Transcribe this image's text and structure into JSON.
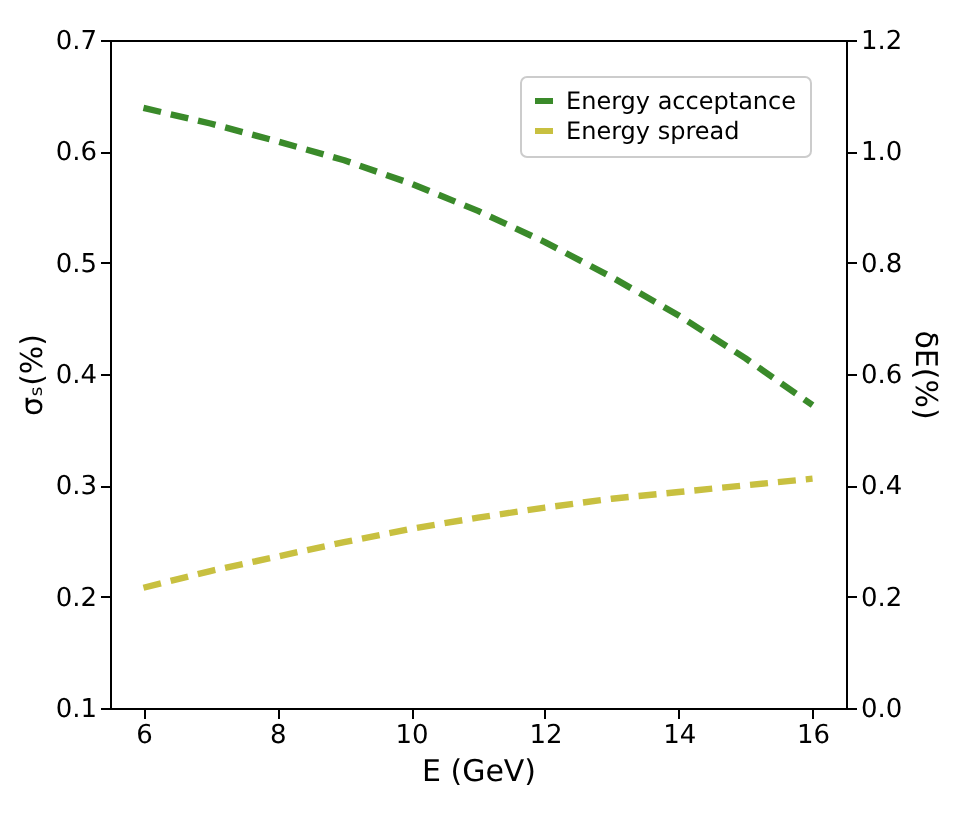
{
  "chart_data": {
    "type": "line",
    "xlabel": "E (GeV)",
    "ylabel": "σₛ(%)",
    "y2label": "δE(%)",
    "x": [
      6,
      7,
      8,
      9,
      10,
      11,
      12,
      13,
      14,
      15,
      16
    ],
    "series": [
      {
        "name": "Energy acceptance",
        "color": "#3a8a2a",
        "axis": "y2",
        "values": [
          1.078,
          1.05,
          1.018,
          0.984,
          0.942,
          0.893,
          0.837,
          0.774,
          0.705,
          0.628,
          0.544
        ]
      },
      {
        "name": "Energy spread",
        "color": "#c8c040",
        "values": [
          0.208,
          0.223,
          0.236,
          0.249,
          0.261,
          0.271,
          0.28,
          0.288,
          0.294,
          0.3,
          0.306
        ]
      }
    ],
    "xlim": [
      5.5,
      16.5
    ],
    "xticks": [
      6,
      8,
      10,
      12,
      14,
      16
    ],
    "ylim": [
      0.1,
      0.7
    ],
    "yticks": [
      0.1,
      0.2,
      0.3,
      0.4,
      0.5,
      0.6,
      0.7
    ],
    "y2lim": [
      0.0,
      1.2
    ],
    "y2ticks": [
      {
        "value": 0,
        "label": "0.0"
      },
      0.2,
      0.4,
      0.6,
      0.8,
      {
        "value": 1,
        "label": "1.0"
      },
      1.2
    ],
    "grid": false,
    "legend": "top right",
    "line_style": "dashed",
    "marker": "none"
  }
}
